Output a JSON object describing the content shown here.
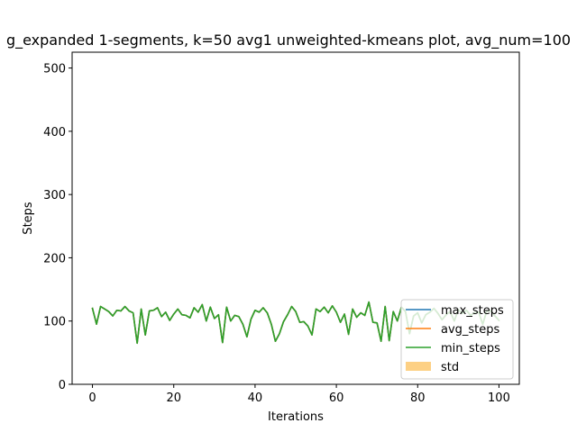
{
  "chart_data": {
    "type": "line",
    "title": "g_expanded 1-segments, k=50 avg1 unweighted-kmeans plot, avg_num=100",
    "xlabel": "Iterations",
    "ylabel": "Steps",
    "xlim": [
      -5,
      105
    ],
    "ylim": [
      0,
      525
    ],
    "xticks": [
      0,
      20,
      40,
      60,
      80,
      100
    ],
    "yticks": [
      0,
      100,
      200,
      300,
      400,
      500
    ],
    "grid": false,
    "legend_position": "lower-right",
    "x": [
      0,
      1,
      2,
      3,
      4,
      5,
      6,
      7,
      8,
      9,
      10,
      11,
      12,
      13,
      14,
      15,
      16,
      17,
      18,
      19,
      20,
      21,
      22,
      23,
      24,
      25,
      26,
      27,
      28,
      29,
      30,
      31,
      32,
      33,
      34,
      35,
      36,
      37,
      38,
      39,
      40,
      41,
      42,
      43,
      44,
      45,
      46,
      47,
      48,
      49,
      50,
      51,
      52,
      53,
      54,
      55,
      56,
      57,
      58,
      59,
      60,
      61,
      62,
      63,
      64,
      65,
      66,
      67,
      68,
      69,
      70,
      71,
      72,
      73,
      74,
      75,
      76,
      77,
      78,
      79,
      80,
      81,
      82,
      83,
      84,
      85,
      86,
      87,
      88,
      89,
      90,
      91,
      92,
      93,
      94,
      95,
      96,
      97,
      98,
      99,
      100
    ],
    "series": [
      {
        "name": "max_steps",
        "color": "#1f77b4",
        "values": [
          120,
          95,
          123,
          119,
          115,
          108,
          117,
          116,
          123,
          116,
          113,
          65,
          119,
          78,
          116,
          117,
          121,
          107,
          114,
          101,
          111,
          119,
          110,
          109,
          105,
          121,
          114,
          126,
          100,
          122,
          104,
          110,
          66,
          122,
          100,
          109,
          107,
          95,
          75,
          103,
          117,
          114,
          121,
          113,
          95,
          68,
          80,
          99,
          110,
          123,
          115,
          98,
          99,
          92,
          78,
          119,
          115,
          122,
          113,
          124,
          114,
          98,
          111,
          79,
          119,
          106,
          113,
          109,
          130,
          98,
          97,
          68,
          123,
          69,
          115,
          100,
          122,
          115,
          80,
          108,
          113,
          97,
          110,
          114,
          120,
          112,
          102,
          110,
          115,
          100,
          118,
          112,
          117,
          109,
          113,
          114,
          95,
          116,
          116,
          108,
          101
        ]
      },
      {
        "name": "avg_steps",
        "color": "#ff7f0e",
        "values": [
          120,
          95,
          123,
          119,
          115,
          108,
          117,
          116,
          123,
          116,
          113,
          65,
          119,
          78,
          116,
          117,
          121,
          107,
          114,
          101,
          111,
          119,
          110,
          109,
          105,
          121,
          114,
          126,
          100,
          122,
          104,
          110,
          66,
          122,
          100,
          109,
          107,
          95,
          75,
          103,
          117,
          114,
          121,
          113,
          95,
          68,
          80,
          99,
          110,
          123,
          115,
          98,
          99,
          92,
          78,
          119,
          115,
          122,
          113,
          124,
          114,
          98,
          111,
          79,
          119,
          106,
          113,
          109,
          130,
          98,
          97,
          68,
          123,
          69,
          115,
          100,
          122,
          115,
          80,
          108,
          113,
          97,
          110,
          114,
          120,
          112,
          102,
          110,
          115,
          100,
          118,
          112,
          117,
          109,
          113,
          114,
          95,
          116,
          116,
          108,
          101
        ]
      },
      {
        "name": "min_steps",
        "color": "#2ca02c",
        "values": [
          120,
          95,
          123,
          119,
          115,
          108,
          117,
          116,
          123,
          116,
          113,
          65,
          119,
          78,
          116,
          117,
          121,
          107,
          114,
          101,
          111,
          119,
          110,
          109,
          105,
          121,
          114,
          126,
          100,
          122,
          104,
          110,
          66,
          122,
          100,
          109,
          107,
          95,
          75,
          103,
          117,
          114,
          121,
          113,
          95,
          68,
          80,
          99,
          110,
          123,
          115,
          98,
          99,
          92,
          78,
          119,
          115,
          122,
          113,
          124,
          114,
          98,
          111,
          79,
          119,
          106,
          113,
          109,
          130,
          98,
          97,
          68,
          123,
          69,
          115,
          100,
          122,
          115,
          80,
          108,
          113,
          97,
          110,
          114,
          120,
          112,
          102,
          110,
          115,
          100,
          118,
          112,
          117,
          109,
          113,
          114,
          95,
          116,
          116,
          108,
          101
        ]
      }
    ],
    "std": {
      "name": "std",
      "color": "#fdd084",
      "values": [
        0
      ]
    }
  }
}
